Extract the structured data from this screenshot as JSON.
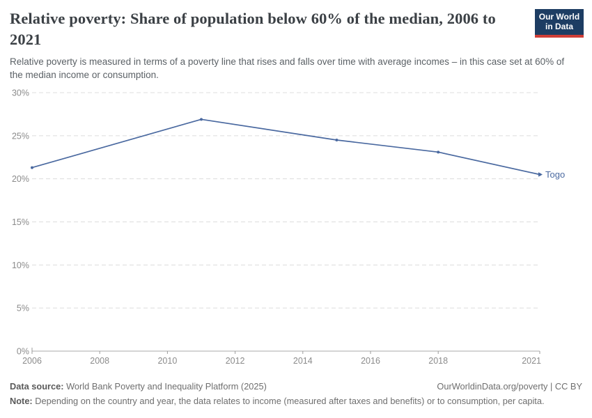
{
  "header": {
    "title": "Relative poverty: Share of population below 60% of the median, 2006 to 2021",
    "subtitle": "Relative poverty is measured in terms of a poverty line that rises and falls over time with average incomes – in this case set at 60% of the median income or consumption.",
    "logo": {
      "line1": "Our World",
      "line2": "in Data",
      "bg_color": "#1d3d63",
      "accent_color": "#cf3e37"
    }
  },
  "chart_data": {
    "type": "line",
    "title": "Relative poverty: Share of population below 60% of the median, 2006 to 2021",
    "xlabel": "",
    "ylabel": "",
    "xlim": [
      2006,
      2021
    ],
    "ylim": [
      0,
      30
    ],
    "xticks": [
      2006,
      2008,
      2010,
      2012,
      2014,
      2016,
      2018,
      2021
    ],
    "yticks": [
      0,
      5,
      10,
      15,
      20,
      25,
      30
    ],
    "ytick_suffix": "%",
    "grid": "horizontal-dashed",
    "legend_position": "end-of-line-label",
    "series": [
      {
        "name": "Togo",
        "x": [
          2006,
          2011,
          2015,
          2018,
          2021
        ],
        "values": [
          21.3,
          26.9,
          24.5,
          23.1,
          20.5
        ],
        "color": "#4a69a0"
      }
    ],
    "colors": {
      "grid": "#dcdcdc",
      "axis": "#a8a8a8",
      "tick": "#9b9b9b",
      "tick_text": "#8b8b8b"
    }
  },
  "footer": {
    "datasource_label": "Data source:",
    "datasource_text": " World Bank Poverty and Inequality Platform (2025)",
    "credit": "OurWorldinData.org/poverty | CC BY",
    "note_label": "Note:",
    "note_text": " Depending on the country and year, the data relates to income (measured after taxes and benefits) or to consumption, per capita."
  }
}
